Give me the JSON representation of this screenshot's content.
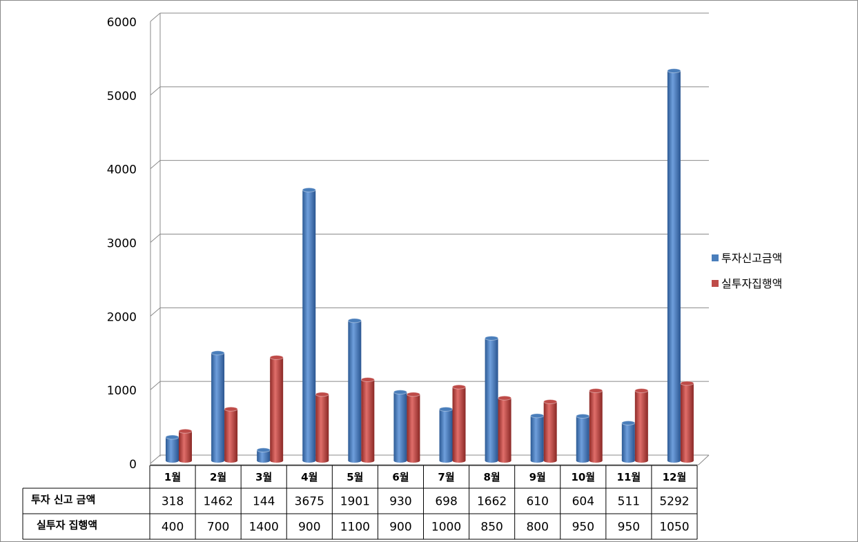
{
  "chart_data": {
    "type": "bar",
    "categories": [
      "1월",
      "2월",
      "3월",
      "4월",
      "5월",
      "6월",
      "7월",
      "8월",
      "9월",
      "10월",
      "11월",
      "12월"
    ],
    "series": [
      {
        "name": "투자신고금액",
        "color": "#4a7ebb",
        "values": [
          318,
          1462,
          144,
          3675,
          1901,
          930,
          698,
          1662,
          610,
          604,
          511,
          5292
        ]
      },
      {
        "name": "실투자집행액",
        "color": "#be4b48",
        "values": [
          400,
          700,
          1400,
          900,
          1100,
          900,
          1000,
          850,
          800,
          950,
          950,
          1050
        ]
      }
    ],
    "table_row_labels": [
      "투자 신고 금액",
      "실투자 집행액"
    ],
    "ylim": [
      0,
      6000
    ],
    "yticks": [
      0,
      1000,
      2000,
      3000,
      4000,
      5000,
      6000
    ],
    "grid": true,
    "legend": "right"
  }
}
